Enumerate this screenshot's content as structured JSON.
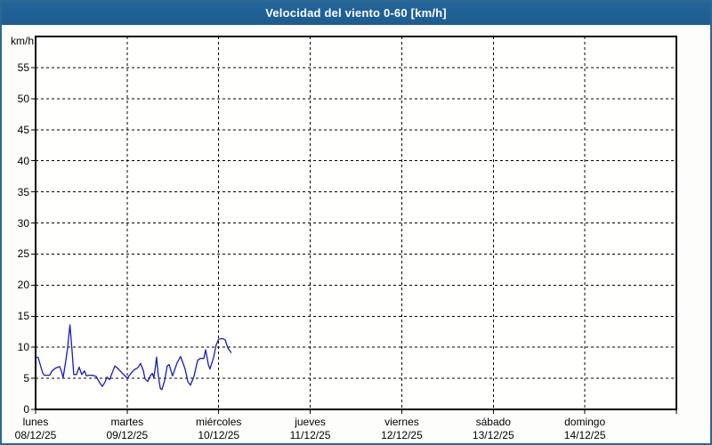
{
  "title": "Velocidad del viento 0-60 [km/h]",
  "colors": {
    "titlebar": "#1f6097",
    "frame": "#2e6791",
    "line": "#1a1ab9",
    "grid": "#000000",
    "plot_bg": "#fffffe"
  },
  "chart_data": {
    "type": "line",
    "title": "Velocidad del viento 0-60 [km/h]",
    "xlabel": "",
    "ylabel": "km/h",
    "ylim": [
      0,
      60
    ],
    "y_ticks": [
      0,
      5,
      10,
      15,
      20,
      25,
      30,
      35,
      40,
      45,
      50,
      55
    ],
    "grid": "dashed",
    "legend": "none",
    "x_days": [
      {
        "name": "lunes",
        "date": "08/12/25"
      },
      {
        "name": "martes",
        "date": "09/12/25"
      },
      {
        "name": "miércoles",
        "date": "10/12/25"
      },
      {
        "name": "jueves",
        "date": "11/12/25"
      },
      {
        "name": "viernes",
        "date": "12/12/25"
      },
      {
        "name": "sábado",
        "date": "13/12/25"
      },
      {
        "name": "domingo",
        "date": "14/12/25"
      }
    ],
    "x_unit": "hours_from_monday_00h",
    "x_range_hours": [
      0,
      168
    ],
    "series": [
      {
        "name": "velocidad-viento",
        "color": "#1a1ab9",
        "points": [
          [
            0,
            8.5
          ],
          [
            0.7,
            8.3
          ],
          [
            1.4,
            6.8
          ],
          [
            1.9,
            5.8
          ],
          [
            2.3,
            5.5
          ],
          [
            3.7,
            5.5
          ],
          [
            4.2,
            6.1
          ],
          [
            5.1,
            6.6
          ],
          [
            6.3,
            6.9
          ],
          [
            6.8,
            6.1
          ],
          [
            7.2,
            5.1
          ],
          [
            7.9,
            7.8
          ],
          [
            8.4,
            9.9
          ],
          [
            8.6,
            11.3
          ],
          [
            9,
            13.6
          ],
          [
            9.6,
            9.2
          ],
          [
            10,
            5.6
          ],
          [
            10.7,
            5.6
          ],
          [
            11.4,
            6.8
          ],
          [
            12.1,
            5.6
          ],
          [
            12.8,
            6.2
          ],
          [
            13.3,
            5.4
          ],
          [
            14,
            5.5
          ],
          [
            14.9,
            5.5
          ],
          [
            15.9,
            5.3
          ],
          [
            16.8,
            4.3
          ],
          [
            17.5,
            3.7
          ],
          [
            18.2,
            4.4
          ],
          [
            18.7,
            5.2
          ],
          [
            19.4,
            4.8
          ],
          [
            20.1,
            5.9
          ],
          [
            20.8,
            7
          ],
          [
            21.7,
            6.5
          ],
          [
            22.6,
            5.9
          ],
          [
            23.6,
            5.3
          ],
          [
            24,
            5
          ],
          [
            25,
            5.8
          ],
          [
            25.9,
            6.4
          ],
          [
            26.8,
            6.7
          ],
          [
            27.5,
            7.4
          ],
          [
            28.2,
            6.3
          ],
          [
            28.7,
            4.9
          ],
          [
            29.4,
            4.5
          ],
          [
            30.1,
            5.4
          ],
          [
            30.6,
            5.8
          ],
          [
            31,
            5.1
          ],
          [
            31.5,
            7.3
          ],
          [
            31.7,
            8.4
          ],
          [
            32.2,
            5.3
          ],
          [
            32.7,
            3.4
          ],
          [
            33.1,
            3.2
          ],
          [
            33.8,
            4.6
          ],
          [
            34.5,
            7
          ],
          [
            35,
            7.2
          ],
          [
            35.9,
            5.4
          ],
          [
            37.1,
            7.5
          ],
          [
            38,
            8.5
          ],
          [
            39.2,
            6.5
          ],
          [
            39.9,
            4.5
          ],
          [
            40.6,
            3.9
          ],
          [
            41.5,
            5.3
          ],
          [
            42.5,
            7.9
          ],
          [
            43.2,
            8.2
          ],
          [
            44.1,
            8.2
          ],
          [
            44.6,
            9.6
          ],
          [
            45.3,
            7.2
          ],
          [
            45.7,
            6.5
          ],
          [
            46.7,
            8.4
          ],
          [
            47.3,
            10.3
          ],
          [
            48,
            11.3
          ],
          [
            49,
            11.4
          ],
          [
            49.7,
            11.2
          ],
          [
            50.4,
            9.9
          ],
          [
            51.3,
            9.1
          ]
        ]
      }
    ]
  }
}
